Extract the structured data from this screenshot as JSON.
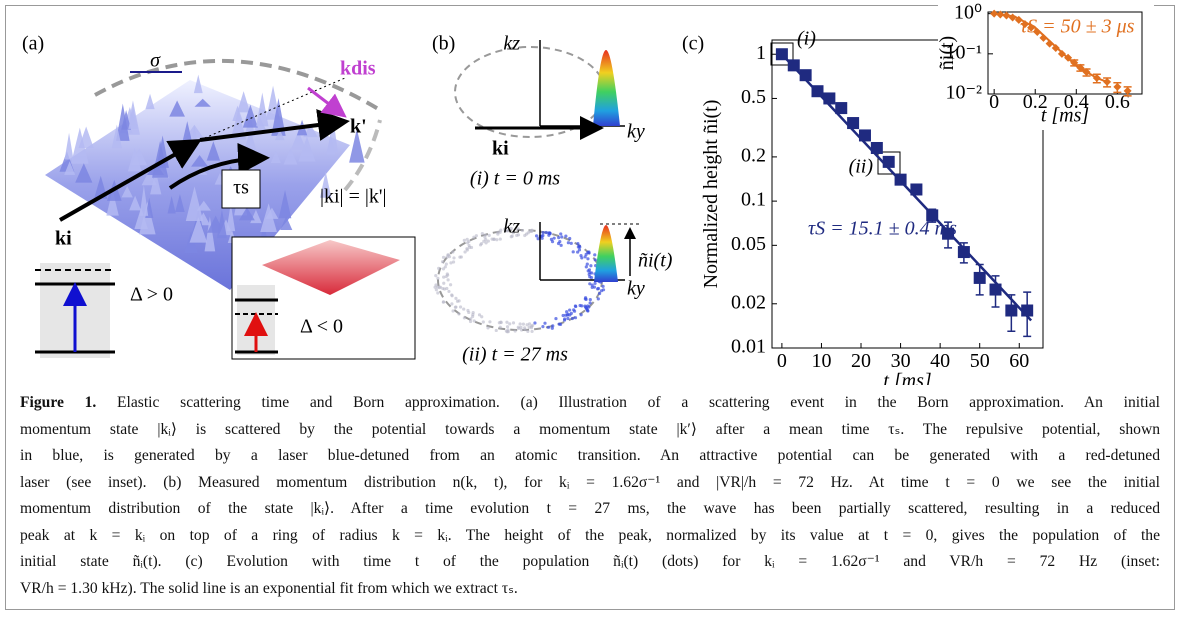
{
  "panel_a": {
    "label": "(a)",
    "sigma": "σ",
    "k_dis": "kdis",
    "k_prime": "k'",
    "tau": "τs",
    "equality": "|ki| = |k'|",
    "k_i": "ki",
    "delta_pos": "Δ > 0",
    "delta_neg": "Δ < 0"
  },
  "panel_b": {
    "label": "(b)",
    "top": {
      "k_z": "kz",
      "k_y": "ky",
      "k_i": "ki",
      "caption": "(i) t = 0 ms"
    },
    "bottom": {
      "k_z": "kz",
      "k_y": "ky",
      "n_label": "ñi(t)",
      "caption": "(ii) t = 27 ms"
    }
  },
  "panel_c": {
    "label": "(c)",
    "mark_i": "(i)",
    "mark_ii": "(ii)"
  },
  "chart_data": [
    {
      "type": "scatter",
      "y_label": "Normalized height ñi(t)",
      "x_label": "t [ms]",
      "annotation": "τS = 15.1 ± 0.4 ms",
      "color": "#1f2a80",
      "log_y": true,
      "x": [
        0,
        3,
        6,
        9,
        12,
        15,
        18,
        21,
        24,
        27,
        30,
        34,
        38,
        42,
        46,
        50,
        54,
        58,
        62
      ],
      "values": [
        1,
        0.84,
        0.72,
        0.56,
        0.5,
        0.43,
        0.34,
        0.28,
        0.23,
        0.185,
        0.14,
        0.12,
        0.08,
        0.06,
        0.045,
        0.03,
        0.025,
        0.018,
        0.018
      ],
      "errors": [
        0,
        0,
        0,
        0,
        0,
        0,
        0,
        0,
        0,
        0,
        0,
        0,
        0.008,
        0.012,
        0.007,
        0.007,
        0.006,
        0.005,
        0.006
      ],
      "fit": {
        "x": [
          0,
          63
        ],
        "values": [
          1,
          0.0154
        ]
      },
      "xlim": [
        -2.5,
        66
      ],
      "ylim": [
        0.01,
        1.25
      ],
      "xticks": [
        0,
        10,
        20,
        30,
        40,
        50,
        60
      ],
      "yticks": [
        1,
        0.5,
        0.2,
        0.1,
        0.05,
        0.02,
        0.01
      ]
    },
    {
      "type": "scatter",
      "y_label": "ñi(t)",
      "x_label": "t [ms]",
      "annotation": "τS = 50 ± 3 μs",
      "color": "#e07020",
      "log_y": true,
      "x": [
        0,
        0.03,
        0.06,
        0.09,
        0.12,
        0.15,
        0.18,
        0.21,
        0.24,
        0.27,
        0.3,
        0.33,
        0.36,
        0.39,
        0.42,
        0.45,
        0.5,
        0.55,
        0.6,
        0.65
      ],
      "values": [
        1,
        0.95,
        0.9,
        0.8,
        0.7,
        0.55,
        0.45,
        0.35,
        0.25,
        0.18,
        0.14,
        0.1,
        0.08,
        0.06,
        0.045,
        0.035,
        0.025,
        0.02,
        0.015,
        0.012
      ],
      "errors": [
        0,
        0,
        0,
        0,
        0,
        0,
        0,
        0,
        0,
        0,
        0,
        0,
        0,
        0.01,
        0.008,
        0.007,
        0.006,
        0.005,
        0.004,
        0.003
      ],
      "fit": {
        "x": [
          0,
          0.1,
          0.2,
          0.3,
          0.4,
          0.5,
          0.55
        ],
        "values": [
          1,
          0.85,
          0.45,
          0.15,
          0.05,
          0.025,
          0.02
        ]
      },
      "xlim": [
        -0.03,
        0.72
      ],
      "ylim": [
        0.01,
        1.1
      ],
      "xticks": [
        0,
        0.2,
        0.4,
        0.6
      ],
      "yticks": [
        {
          "value": 1,
          "label": "10⁰"
        },
        {
          "value": 0.1,
          "label": "10⁻¹"
        },
        {
          "value": 0.01,
          "label": "10⁻²"
        }
      ]
    }
  ],
  "caption": {
    "label": "Figure 1.",
    "lines": [
      "Elastic scattering time and Born approximation. (a) Illustration of a scattering event in the Born approximation. An initial",
      "momentum state |kᵢ⟩ is scattered by the potential towards a momentum state |k′⟩ after a mean time τₛ. The repulsive potential, shown",
      "in blue, is generated by a laser blue-detuned from an atomic transition. An attractive potential can be generated with a red-detuned",
      "laser (see inset). (b) Measured momentum distribution n(k, t), for kᵢ = 1.62σ⁻¹ and |VR|/h = 72 Hz. At time t = 0 we see the initial",
      "momentum distribution of the state |kᵢ⟩. After a time evolution t = 27 ms, the wave has been partially scattered, resulting in a reduced",
      "peak at k = kᵢ on top of a ring of radius k = kᵢ. The height of the peak, normalized by its value at t = 0, gives the population of the",
      "initial state ñᵢ(t). (c)  Evolution with time t of the population ñᵢ(t) (dots) for kᵢ = 1.62σ⁻¹ and VR/h = 72 Hz (inset:",
      "VR/h = 1.30 kHz). The solid line is an exponential fit from which we extract τₛ."
    ]
  }
}
